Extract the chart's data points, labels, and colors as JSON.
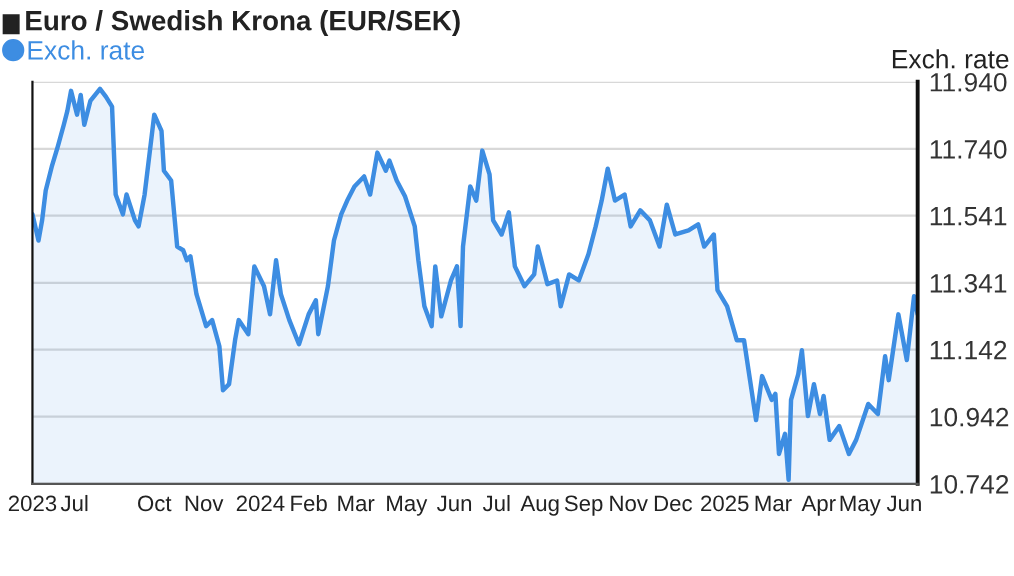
{
  "chart_data": {
    "type": "area",
    "title": "Euro / Swedish Krona (EUR/SEK)",
    "ylabel": "Exch. rate",
    "x": [
      "2023-06-26",
      "2023-07-01",
      "2023-07-04",
      "2023-07-07",
      "2023-07-12",
      "2023-07-17",
      "2023-07-22",
      "2023-07-25",
      "2023-07-28",
      "2023-08-02",
      "2023-08-05",
      "2023-08-08",
      "2023-08-13",
      "2023-08-21",
      "2023-08-26",
      "2023-08-31",
      "2023-09-03",
      "2023-09-09",
      "2023-09-12",
      "2023-09-19",
      "2023-09-22",
      "2023-09-27",
      "2023-10-03",
      "2023-10-05",
      "2023-10-11",
      "2023-10-13",
      "2023-10-19",
      "2023-10-24",
      "2023-10-29",
      "2023-11-01",
      "2023-11-04",
      "2023-11-09",
      "2023-11-17",
      "2023-11-22",
      "2023-11-28",
      "2023-12-01",
      "2023-12-06",
      "2023-12-11",
      "2023-12-14",
      "2023-12-22",
      "2023-12-27",
      "2024-01-04",
      "2024-01-09",
      "2024-01-14",
      "2024-01-18",
      "2024-01-25",
      "2024-02-02",
      "2024-02-10",
      "2024-02-16",
      "2024-02-18",
      "2024-02-26",
      "2024-03-02",
      "2024-03-08",
      "2024-03-13",
      "2024-03-19",
      "2024-03-27",
      "2024-04-01",
      "2024-04-07",
      "2024-04-14",
      "2024-04-17",
      "2024-04-23",
      "2024-04-30",
      "2024-05-08",
      "2024-05-11",
      "2024-05-16",
      "2024-05-22",
      "2024-05-25",
      "2024-05-30",
      "2024-06-07",
      "2024-06-12",
      "2024-06-15",
      "2024-06-17",
      "2024-06-23",
      "2024-06-28",
      "2024-07-03",
      "2024-07-09",
      "2024-07-12",
      "2024-07-19",
      "2024-07-25",
      "2024-07-30",
      "2024-08-07",
      "2024-08-15",
      "2024-08-18",
      "2024-08-26",
      "2024-09-03",
      "2024-09-06",
      "2024-09-13",
      "2024-09-21",
      "2024-09-29",
      "2024-10-05",
      "2024-10-10",
      "2024-10-15",
      "2024-10-21",
      "2024-10-29",
      "2024-11-03",
      "2024-11-11",
      "2024-11-19",
      "2024-11-27",
      "2024-12-03",
      "2024-12-10",
      "2024-12-21",
      "2024-12-29",
      "2025-01-03",
      "2025-01-11",
      "2025-01-14",
      "2025-01-22",
      "2025-01-30",
      "2025-02-05",
      "2025-02-10",
      "2025-02-15",
      "2025-02-20",
      "2025-02-28",
      "2025-03-03",
      "2025-03-06",
      "2025-03-11",
      "2025-03-14",
      "2025-03-16",
      "2025-03-22",
      "2025-03-25",
      "2025-03-30",
      "2025-04-04",
      "2025-04-09",
      "2025-04-12",
      "2025-04-17",
      "2025-04-25",
      "2025-05-03",
      "2025-05-09",
      "2025-05-19",
      "2025-05-27",
      "2025-06-02",
      "2025-06-05",
      "2025-06-13",
      "2025-06-20",
      "2025-06-26",
      "2025-06-29"
    ],
    "series": [
      {
        "name": "Exch. rate",
        "color": "#3d8de2",
        "values": [
          11.545,
          11.467,
          11.527,
          11.616,
          11.687,
          11.747,
          11.812,
          11.854,
          11.913,
          11.842,
          11.901,
          11.812,
          11.883,
          11.919,
          11.895,
          11.866,
          11.604,
          11.545,
          11.604,
          11.527,
          11.509,
          11.604,
          11.782,
          11.842,
          11.794,
          11.675,
          11.646,
          11.449,
          11.438,
          11.408,
          11.42,
          11.307,
          11.212,
          11.23,
          11.152,
          11.021,
          11.039,
          11.17,
          11.23,
          11.188,
          11.39,
          11.331,
          11.247,
          11.408,
          11.307,
          11.23,
          11.158,
          11.247,
          11.289,
          11.188,
          11.331,
          11.467,
          11.545,
          11.586,
          11.628,
          11.658,
          11.604,
          11.729,
          11.675,
          11.705,
          11.646,
          11.598,
          11.509,
          11.408,
          11.271,
          11.212,
          11.39,
          11.241,
          11.348,
          11.39,
          11.212,
          11.449,
          11.628,
          11.586,
          11.735,
          11.664,
          11.527,
          11.485,
          11.551,
          11.39,
          11.331,
          11.366,
          11.449,
          11.337,
          11.348,
          11.271,
          11.366,
          11.348,
          11.426,
          11.509,
          11.586,
          11.681,
          11.586,
          11.604,
          11.509,
          11.557,
          11.527,
          11.449,
          11.574,
          11.485,
          11.497,
          11.515,
          11.449,
          11.485,
          11.319,
          11.271,
          11.17,
          11.17,
          11.051,
          10.932,
          11.063,
          10.992,
          11.01,
          10.831,
          10.891,
          10.754,
          10.992,
          11.069,
          11.14,
          10.944,
          11.039,
          10.95,
          11.004,
          10.873,
          10.914,
          10.831,
          10.873,
          10.98,
          10.95,
          11.122,
          11.051,
          11.247,
          11.111,
          11.301,
          11.247
        ]
      }
    ],
    "xlim": [
      "2023-06-26",
      "2025-06-29"
    ],
    "xticks": [
      {
        "value": "2023-06-26",
        "label": "2023"
      },
      {
        "value": "2023-07-31",
        "label": "Jul"
      },
      {
        "value": "2023-10-05",
        "label": "Oct"
      },
      {
        "value": "2023-11-15",
        "label": "Nov"
      },
      {
        "value": "2024-01-01",
        "label": "2024"
      },
      {
        "value": "2024-02-10",
        "label": "Feb"
      },
      {
        "value": "2024-03-20",
        "label": "Mar"
      },
      {
        "value": "2024-05-01",
        "label": "May"
      },
      {
        "value": "2024-06-10",
        "label": "Jun"
      },
      {
        "value": "2024-07-15",
        "label": "Jul"
      },
      {
        "value": "2024-08-20",
        "label": "Aug"
      },
      {
        "value": "2024-09-25",
        "label": "Sep"
      },
      {
        "value": "2024-11-01",
        "label": "Nov"
      },
      {
        "value": "2024-12-08",
        "label": "Dec"
      },
      {
        "value": "2025-01-20",
        "label": "2025"
      },
      {
        "value": "2025-03-01",
        "label": "Mar"
      },
      {
        "value": "2025-04-08",
        "label": "Apr"
      },
      {
        "value": "2025-05-12",
        "label": "May"
      },
      {
        "value": "2025-06-18",
        "label": "Jun"
      }
    ],
    "ylim": [
      10.742,
      11.94
    ],
    "yticks": [
      {
        "value": 10.742,
        "label": "10.742"
      },
      {
        "value": 10.942,
        "label": "10.942"
      },
      {
        "value": 11.142,
        "label": "11.142"
      },
      {
        "value": 11.341,
        "label": "11.341"
      },
      {
        "value": 11.541,
        "label": "11.541"
      },
      {
        "value": 11.74,
        "label": "11.740"
      },
      {
        "value": 11.94,
        "label": "11.940"
      }
    ],
    "grid": "y",
    "legend": "top left"
  }
}
